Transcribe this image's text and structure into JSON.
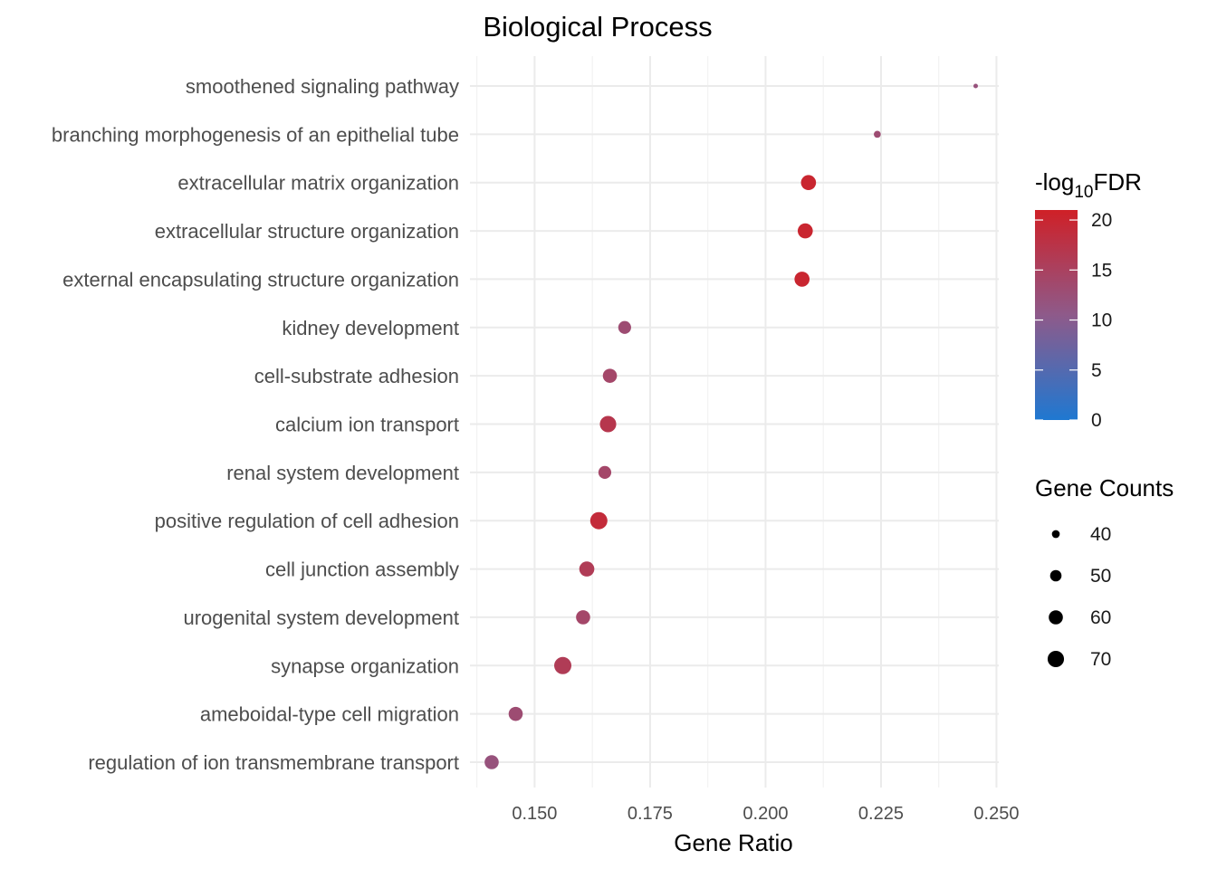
{
  "chart_data": {
    "type": "scatter",
    "title": "Biological Process",
    "xlabel": "Gene Ratio",
    "ylabel": "",
    "xlim": [
      0.136,
      0.2505
    ],
    "x_ticks": [
      0.15,
      0.175,
      0.2,
      0.225,
      0.25
    ],
    "x_tick_labels": [
      "0.150",
      "0.175",
      "0.200",
      "0.225",
      "0.250"
    ],
    "categories": [
      "smoothened signaling pathway",
      "branching morphogenesis of an epithelial tube",
      "extracellular matrix organization",
      "extracellular structure organization",
      "external encapsulating structure organization",
      "kidney development",
      "cell-substrate adhesion",
      "calcium ion transport",
      "renal system development",
      "positive regulation of cell adhesion",
      "cell junction assembly",
      "urogenital system development",
      "synapse organization",
      "ameboidal-type cell migration",
      "regulation of ion transmembrane transport"
    ],
    "points": [
      {
        "term": "smoothened signaling pathway",
        "gene_ratio": 0.2455,
        "neg_log10_fdr": 12,
        "gene_count": 34
      },
      {
        "term": "branching morphogenesis of an epithelial tube",
        "gene_ratio": 0.2242,
        "neg_log10_fdr": 13,
        "gene_count": 38
      },
      {
        "term": "extracellular matrix organization",
        "gene_ratio": 0.2093,
        "neg_log10_fdr": 20,
        "gene_count": 64
      },
      {
        "term": "extracellular structure organization",
        "gene_ratio": 0.2086,
        "neg_log10_fdr": 20,
        "gene_count": 64
      },
      {
        "term": "external encapsulating structure organization",
        "gene_ratio": 0.2079,
        "neg_log10_fdr": 20,
        "gene_count": 64
      },
      {
        "term": "kidney development",
        "gene_ratio": 0.1695,
        "neg_log10_fdr": 13,
        "gene_count": 55
      },
      {
        "term": "cell-substrate adhesion",
        "gene_ratio": 0.1663,
        "neg_log10_fdr": 14,
        "gene_count": 60
      },
      {
        "term": "calcium ion transport",
        "gene_ratio": 0.1659,
        "neg_log10_fdr": 17,
        "gene_count": 70
      },
      {
        "term": "renal system development",
        "gene_ratio": 0.1652,
        "neg_log10_fdr": 14,
        "gene_count": 55
      },
      {
        "term": "positive regulation of cell adhesion",
        "gene_ratio": 0.1639,
        "neg_log10_fdr": 19,
        "gene_count": 74
      },
      {
        "term": "cell junction assembly",
        "gene_ratio": 0.1613,
        "neg_log10_fdr": 16,
        "gene_count": 64
      },
      {
        "term": "urogenital system development",
        "gene_ratio": 0.1605,
        "neg_log10_fdr": 14,
        "gene_count": 60
      },
      {
        "term": "synapse organization",
        "gene_ratio": 0.1561,
        "neg_log10_fdr": 16,
        "gene_count": 74
      },
      {
        "term": "ameboidal-type cell migration",
        "gene_ratio": 0.1459,
        "neg_log10_fdr": 13,
        "gene_count": 60
      },
      {
        "term": "regulation of ion transmembrane transport",
        "gene_ratio": 0.1407,
        "neg_log10_fdr": 12,
        "gene_count": 60
      }
    ],
    "color_legend": {
      "title_prefix": "-log",
      "title_subscript": "10",
      "title_suffix": "FDR",
      "range": [
        0,
        21
      ],
      "ticks": [
        0,
        5,
        10,
        15,
        20
      ],
      "tick_labels": [
        "0",
        "5",
        "10",
        "15",
        "20"
      ],
      "low_color": "#1f78d1",
      "mid_color": "#8e5a8a",
      "high_color": "#cf2027"
    },
    "size_legend": {
      "title": "Gene Counts",
      "values": [
        40,
        50,
        60,
        70
      ],
      "labels": [
        "40",
        "50",
        "60",
        "70"
      ],
      "count_range": [
        34,
        74
      ]
    },
    "legend_position": "right",
    "grid": true
  }
}
